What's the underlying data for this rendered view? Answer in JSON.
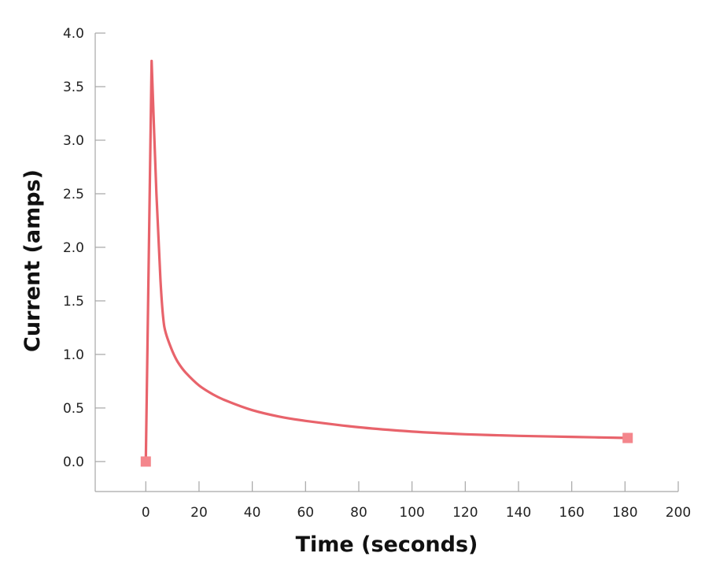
{
  "chart_data": {
    "type": "line",
    "title": "",
    "xlabel": "Time (seconds)",
    "ylabel": "Current (amps)",
    "xlim": [
      -19,
      200
    ],
    "ylim": [
      -0.28,
      4.0
    ],
    "x_ticks": [
      0,
      20,
      40,
      60,
      80,
      100,
      120,
      140,
      160,
      180,
      200
    ],
    "x_tick_labels": [
      "0",
      "20",
      "40",
      "60",
      "80",
      "100",
      "120",
      "140",
      "160",
      "180",
      "200"
    ],
    "y_ticks": [
      0.0,
      0.5,
      1.0,
      1.5,
      2.0,
      2.5,
      3.0,
      3.5,
      4.0
    ],
    "y_tick_labels": [
      "0.0",
      "0.5",
      "1.0",
      "1.5",
      "2.0",
      "2.5",
      "3.0",
      "3.5",
      "4.0"
    ],
    "grid": false,
    "legend": "none",
    "series": [
      {
        "color": "#e8636b",
        "x": [
          0,
          2.2,
          4,
          5.5,
          6.5,
          7.5,
          10,
          12,
          15,
          20,
          25,
          30,
          40,
          50,
          60,
          80,
          100,
          120,
          140,
          160,
          181
        ],
        "y": [
          0,
          3.74,
          2.5,
          1.7,
          1.35,
          1.2,
          1.03,
          0.93,
          0.83,
          0.71,
          0.63,
          0.57,
          0.48,
          0.42,
          0.38,
          0.32,
          0.28,
          0.255,
          0.24,
          0.23,
          0.22
        ]
      }
    ],
    "endpoint_markers": [
      {
        "x": 0,
        "y": 0.0,
        "color": "#f4868c",
        "shape": "square"
      },
      {
        "x": 181,
        "y": 0.22,
        "color": "#f4868c",
        "shape": "square"
      }
    ]
  }
}
